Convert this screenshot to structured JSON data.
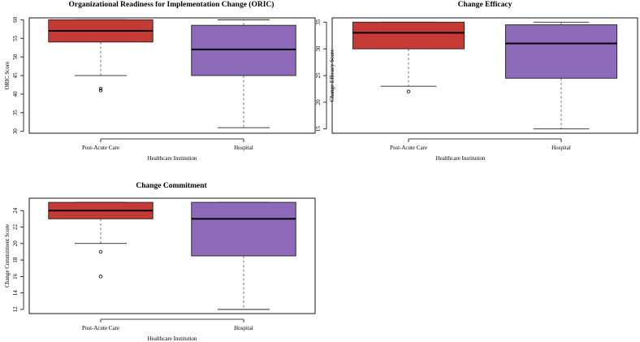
{
  "chart_data": [
    {
      "type": "boxplot",
      "title": "Organizational Readiness for Implementation Change (ORIC)",
      "xlabel": "Healthcare Institution",
      "ylabel": "ORIC Score",
      "ylim": [
        29.5,
        60.5
      ],
      "yticks": [
        30,
        35,
        40,
        45,
        50,
        55,
        60
      ],
      "categories": [
        "Post-Acute Care",
        "Hospital"
      ],
      "colors": [
        "#c63a35",
        "#8e6abb"
      ],
      "boxes": [
        {
          "name": "Post-Acute Care",
          "min": 45,
          "q1": 54,
          "median": 57,
          "q3": 60,
          "max": 60,
          "outliers": [
            41.5,
            41
          ]
        },
        {
          "name": "Hospital",
          "min": 31,
          "q1": 45,
          "median": 52,
          "q3": 58.5,
          "max": 60,
          "outliers": []
        }
      ]
    },
    {
      "type": "boxplot",
      "title": "Change Efficacy",
      "xlabel": "Healthcare Institution",
      "ylabel": "Change Efficacy Score",
      "ylim": [
        14.2,
        35.8
      ],
      "yticks": [
        15,
        20,
        25,
        30,
        35
      ],
      "categories": [
        "Post-Acute Care",
        "Hospital"
      ],
      "colors": [
        "#c63a35",
        "#8e6abb"
      ],
      "boxes": [
        {
          "name": "Post-Acute Care",
          "min": 23,
          "q1": 30,
          "median": 33,
          "q3": 35,
          "max": 35,
          "outliers": [
            22
          ]
        },
        {
          "name": "Hospital",
          "min": 15,
          "q1": 24.5,
          "median": 31,
          "q3": 34.5,
          "max": 35,
          "outliers": []
        }
      ]
    },
    {
      "type": "boxplot",
      "title": "Change Commitment",
      "xlabel": "Healthcare Institution",
      "ylabel": "Change Commitment Score",
      "ylim": [
        11.5,
        25.5
      ],
      "yticks": [
        12,
        14,
        16,
        18,
        20,
        22,
        24
      ],
      "categories": [
        "Post-Acute Care",
        "Hospital"
      ],
      "colors": [
        "#c63a35",
        "#8e6abb"
      ],
      "boxes": [
        {
          "name": "Post-Acute Care",
          "min": 20,
          "q1": 23,
          "median": 24,
          "q3": 25,
          "max": 25,
          "outliers": [
            19,
            16
          ]
        },
        {
          "name": "Hospital",
          "min": 12,
          "q1": 18.5,
          "median": 23,
          "q3": 25,
          "max": 25,
          "outliers": []
        }
      ]
    }
  ]
}
